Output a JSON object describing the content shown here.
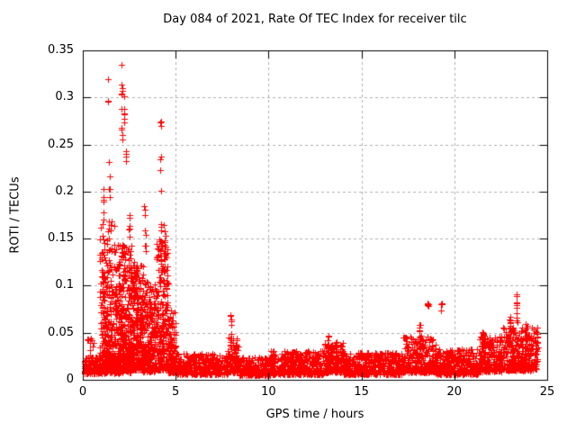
{
  "title": "Day 084 of 2021, Rate Of TEC Index for receiver tilc",
  "chart_data": {
    "type": "scatter",
    "title": "Day 084 of 2021, Rate Of TEC Index for receiver tilc",
    "xlabel": "GPS time / hours",
    "ylabel": "ROTI / TECUs",
    "xlim": [
      0,
      25
    ],
    "ylim": [
      0,
      0.35
    ],
    "xticks": [
      0,
      5,
      10,
      15,
      20,
      25
    ],
    "xtick_labels": [
      "0",
      "5",
      "10",
      "15",
      "20",
      "25"
    ],
    "yticks": [
      0,
      0.05,
      0.1,
      0.15,
      0.2,
      0.25,
      0.3,
      0.35
    ],
    "ytick_labels": [
      "0",
      "0.05",
      "0.1",
      "0.15",
      "0.2",
      "0.25",
      "0.3",
      "0.35"
    ],
    "grid": true,
    "legend": "none",
    "marker": {
      "symbol": "plus",
      "color": "#ff0000",
      "size": 7
    },
    "axis_color": "#000000",
    "grid_color": "#b0b0b0",
    "background": "#ffffff",
    "seed": 84,
    "baseline_segments": [
      {
        "x0": 0.05,
        "x1": 0.9,
        "lo": 0.007,
        "hi": 0.026,
        "n": 120,
        "bias": 2.0
      },
      {
        "x0": 0.25,
        "x1": 0.65,
        "lo": 0.028,
        "hi": 0.047,
        "n": 10,
        "bias": 1.0
      },
      {
        "x0": 0.9,
        "x1": 1.7,
        "lo": 0.01,
        "hi": 0.17,
        "n": 260,
        "bias": 1.9
      },
      {
        "x0": 0.9,
        "x1": 1.7,
        "lo": 0.007,
        "hi": 0.03,
        "n": 90,
        "bias": 1.5
      },
      {
        "x0": 1.7,
        "x1": 2.65,
        "lo": 0.01,
        "hi": 0.145,
        "n": 360,
        "bias": 1.7
      },
      {
        "x0": 1.7,
        "x1": 2.65,
        "lo": 0.007,
        "hi": 0.03,
        "n": 90,
        "bias": 1.5
      },
      {
        "x0": 2.65,
        "x1": 3.25,
        "lo": 0.01,
        "hi": 0.125,
        "n": 250,
        "bias": 1.6
      },
      {
        "x0": 3.25,
        "x1": 3.95,
        "lo": 0.009,
        "hi": 0.105,
        "n": 230,
        "bias": 1.7
      },
      {
        "x0": 3.95,
        "x1": 4.6,
        "lo": 0.01,
        "hi": 0.15,
        "n": 230,
        "bias": 1.6
      },
      {
        "x0": 4.6,
        "x1": 5.0,
        "lo": 0.008,
        "hi": 0.075,
        "n": 120,
        "bias": 1.9
      },
      {
        "x0": 5.0,
        "x1": 7.8,
        "lo": 0.006,
        "hi": 0.028,
        "n": 370,
        "bias": 1.9
      },
      {
        "x0": 7.8,
        "x1": 8.4,
        "lo": 0.008,
        "hi": 0.046,
        "n": 95,
        "bias": 1.6
      },
      {
        "x0": 8.4,
        "x1": 10.1,
        "lo": 0.005,
        "hi": 0.024,
        "n": 240,
        "bias": 1.9
      },
      {
        "x0": 10.1,
        "x1": 13.0,
        "lo": 0.006,
        "hi": 0.031,
        "n": 410,
        "bias": 1.9
      },
      {
        "x0": 13.0,
        "x1": 14.0,
        "lo": 0.008,
        "hi": 0.04,
        "n": 150,
        "bias": 1.8
      },
      {
        "x0": 14.0,
        "x1": 17.2,
        "lo": 0.006,
        "hi": 0.029,
        "n": 450,
        "bias": 1.9
      },
      {
        "x0": 17.2,
        "x1": 19.0,
        "lo": 0.008,
        "hi": 0.046,
        "n": 270,
        "bias": 1.8
      },
      {
        "x0": 19.0,
        "x1": 21.3,
        "lo": 0.006,
        "hi": 0.033,
        "n": 330,
        "bias": 1.9
      },
      {
        "x0": 21.3,
        "x1": 22.6,
        "lo": 0.009,
        "hi": 0.047,
        "n": 210,
        "bias": 1.8
      },
      {
        "x0": 22.6,
        "x1": 24.5,
        "lo": 0.01,
        "hi": 0.056,
        "n": 340,
        "bias": 1.7
      }
    ],
    "spike_columns": [
      {
        "x": 1.1,
        "lo": 0.04,
        "hi": 0.115,
        "n": 14,
        "spread": 0.1
      },
      {
        "x": 1.12,
        "lo": 0.17,
        "hi": 0.215,
        "n": 6,
        "spread": 0.05
      },
      {
        "x": 1.36,
        "lo": 0.295,
        "hi": 0.32,
        "n": 3,
        "spread": 0.04
      },
      {
        "x": 1.45,
        "lo": 0.19,
        "hi": 0.24,
        "n": 5,
        "spread": 0.05
      },
      {
        "x": 2.1,
        "lo": 0.255,
        "hi": 0.335,
        "n": 11,
        "spread": 0.08
      },
      {
        "x": 2.22,
        "lo": 0.27,
        "hi": 0.302,
        "n": 7,
        "spread": 0.06
      },
      {
        "x": 2.35,
        "lo": 0.215,
        "hi": 0.248,
        "n": 4,
        "spread": 0.05
      },
      {
        "x": 2.5,
        "lo": 0.15,
        "hi": 0.2,
        "n": 6,
        "spread": 0.08
      },
      {
        "x": 3.35,
        "lo": 0.135,
        "hi": 0.21,
        "n": 8,
        "spread": 0.07
      },
      {
        "x": 4.2,
        "lo": 0.125,
        "hi": 0.275,
        "n": 14,
        "spread": 0.08
      },
      {
        "x": 4.4,
        "lo": 0.095,
        "hi": 0.185,
        "n": 10,
        "spread": 0.07
      },
      {
        "x": 7.95,
        "lo": 0.022,
        "hi": 0.072,
        "n": 18,
        "spread": 0.12
      },
      {
        "x": 13.2,
        "lo": 0.028,
        "hi": 0.048,
        "n": 9,
        "spread": 0.1
      },
      {
        "x": 18.15,
        "lo": 0.032,
        "hi": 0.064,
        "n": 10,
        "spread": 0.12
      },
      {
        "x": 18.6,
        "lo": 0.074,
        "hi": 0.083,
        "n": 7,
        "spread": 0.08
      },
      {
        "x": 19.3,
        "lo": 0.072,
        "hi": 0.086,
        "n": 4,
        "spread": 0.05
      },
      {
        "x": 21.55,
        "lo": 0.03,
        "hi": 0.053,
        "n": 10,
        "spread": 0.12
      },
      {
        "x": 23.0,
        "lo": 0.035,
        "hi": 0.068,
        "n": 12,
        "spread": 0.1
      },
      {
        "x": 23.35,
        "lo": 0.055,
        "hi": 0.094,
        "n": 10,
        "spread": 0.06
      },
      {
        "x": 23.9,
        "lo": 0.04,
        "hi": 0.062,
        "n": 8,
        "spread": 0.12
      }
    ]
  }
}
